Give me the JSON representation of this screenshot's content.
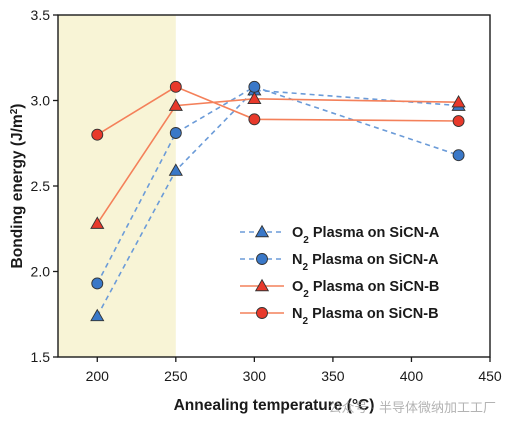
{
  "chart_data": {
    "type": "line",
    "xlabel": "Annealing temperature (°C)",
    "ylabel": "Bonding energy (J/m²)",
    "xlim": [
      175,
      450
    ],
    "ylim": [
      1.5,
      3.5
    ],
    "xticks": [
      200,
      250,
      300,
      350,
      400,
      450
    ],
    "yticks": [
      1.5,
      2.0,
      2.5,
      3.0,
      3.5
    ],
    "shaded_region": {
      "x": [
        175,
        250
      ],
      "color": "#f8f4d6"
    },
    "legend_position": "center-right",
    "series": [
      {
        "name": "O2 Plasma on SiCN-A",
        "name_parts": [
          "O",
          "2",
          " Plasma on SiCN-A"
        ],
        "marker": "triangle",
        "color": "#3a78c8",
        "line_style": "dashed",
        "points": [
          [
            200,
            1.74
          ],
          [
            250,
            2.59
          ],
          [
            300,
            3.06
          ],
          [
            430,
            2.97
          ]
        ]
      },
      {
        "name": "N2 Plasma on SiCN-A",
        "name_parts": [
          "N",
          "2",
          " Plasma on SiCN-A"
        ],
        "marker": "circle",
        "color": "#3a78c8",
        "line_style": "dashed",
        "points": [
          [
            200,
            1.93
          ],
          [
            250,
            2.81
          ],
          [
            300,
            3.08
          ],
          [
            430,
            2.68
          ]
        ]
      },
      {
        "name": "O2 Plasma on SiCN-B",
        "name_parts": [
          "O",
          "2",
          " Plasma on SiCN-B"
        ],
        "marker": "triangle",
        "color": "#e8392b",
        "line_style": "solid",
        "points": [
          [
            200,
            2.28
          ],
          [
            250,
            2.97
          ],
          [
            300,
            3.01
          ],
          [
            430,
            2.99
          ]
        ]
      },
      {
        "name": "N2 Plasma on SiCN-B",
        "name_parts": [
          "N",
          "2",
          " Plasma on SiCN-B"
        ],
        "marker": "circle",
        "color": "#e8392b",
        "line_style": "solid",
        "points": [
          [
            200,
            2.8
          ],
          [
            250,
            3.08
          ],
          [
            300,
            2.89
          ],
          [
            430,
            2.88
          ]
        ]
      }
    ]
  },
  "line_colors": {
    "SiCN-A": "#6b9bd8",
    "SiCN-B": "#f4805a"
  },
  "watermark": "公众号 · 半导体微纳加工工厂"
}
